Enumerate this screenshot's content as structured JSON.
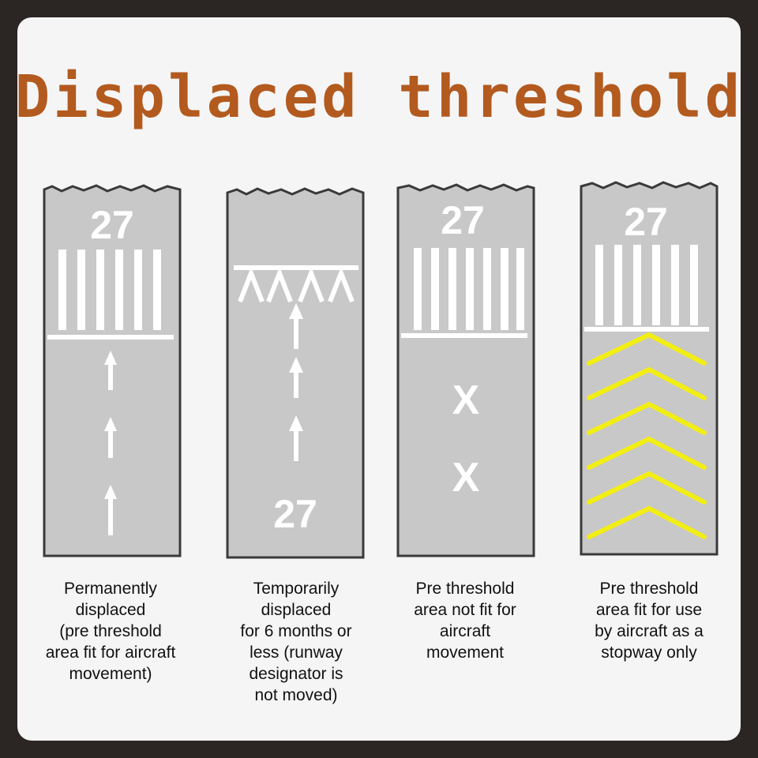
{
  "title": "Displaced threshold",
  "colors": {
    "background_frame": "#2b2523",
    "card": "#f5f5f5",
    "title": "#b35a1f",
    "runway": "#c8c8c8",
    "runway_edge": "#3a3a3a",
    "marking_white": "#ffffff",
    "marking_yellow": "#f2ee14"
  },
  "panels": [
    {
      "designator": "27",
      "caption": "Permanently\ndisplaced\n(pre threshold\narea fit for aircraft\nmovement)"
    },
    {
      "designator": "27",
      "caption": "Temporarily\ndisplaced\nfor 6 months or\nless (runway\ndesignator is\nnot moved)"
    },
    {
      "designator": "27",
      "marker_label": "X",
      "caption": "Pre threshold\narea not fit for\naircraft\nmovement"
    },
    {
      "designator": "27",
      "caption": "Pre threshold\narea fit for use\nby aircraft as a\nstopway only"
    }
  ]
}
